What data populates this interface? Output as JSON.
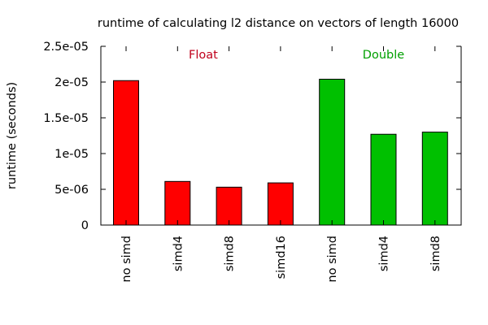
{
  "chart_data": {
    "type": "bar",
    "title": "runtime of calculating l2 distance on vectors of length 16000",
    "xlabel": "",
    "ylabel": "runtime (seconds)",
    "ylim": [
      0,
      2.5e-05
    ],
    "yticks": [
      {
        "value": 0,
        "label": "0"
      },
      {
        "value": 5e-06,
        "label": "5e-06"
      },
      {
        "value": 1e-05,
        "label": "1e-05"
      },
      {
        "value": 1.5e-05,
        "label": "1.5e-05"
      },
      {
        "value": 2e-05,
        "label": "2e-05"
      },
      {
        "value": 2.5e-05,
        "label": "2.5e-05"
      }
    ],
    "grid": false,
    "categories": [
      "no simd",
      "simd4",
      "simd8",
      "simd16",
      "no simd",
      "simd4",
      "simd8"
    ],
    "values": [
      2.02e-05,
      6.1e-06,
      5.3e-06,
      5.9e-06,
      2.04e-05,
      1.27e-05,
      1.3e-05
    ],
    "groups": [
      {
        "name": "Float",
        "color": "#ff0000",
        "label_color": "#c0001c",
        "start": 0,
        "count": 4
      },
      {
        "name": "Double",
        "color": "#00c000",
        "label_color": "#00a000",
        "start": 4,
        "count": 3
      }
    ]
  }
}
